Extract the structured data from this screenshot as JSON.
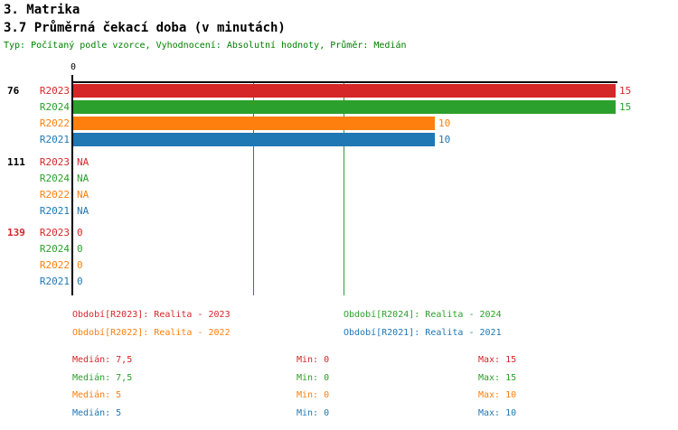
{
  "header": {
    "title": "3. Matrika",
    "subtitle": "3.7 Průměrná čekací doba (v minutách)",
    "info": "Typ: Počítaný podle vzorce, Vyhodnocení: Absolutní hodnoty, Průměr: Medián",
    "info_color": "#008000"
  },
  "chart_data": {
    "type": "bar",
    "orientation": "horizontal",
    "title": "3.7 Průměrná čekací doba (v minutách)",
    "x_axis": {
      "ticks": [
        {
          "value": 0,
          "label": "0"
        }
      ],
      "range": [
        0,
        15
      ],
      "grid": false
    },
    "series": [
      {
        "name": "R2023",
        "color": "#d62728",
        "legend": "Období[R2023]: Realita - 2023",
        "median": 7.5,
        "min": 0,
        "max": 15,
        "median_label": "Medián: 7,5",
        "min_label": "Min: 0",
        "max_label": "Max: 15"
      },
      {
        "name": "R2024",
        "color": "#2ca02c",
        "legend": "Období[R2024]: Realita - 2024",
        "median": 7.5,
        "min": 0,
        "max": 15,
        "median_label": "Medián: 7,5",
        "min_label": "Min: 0",
        "max_label": "Max: 15"
      },
      {
        "name": "R2022",
        "color": "#ff7f0e",
        "legend": "Období[R2022]: Realita - 2022",
        "median": 5,
        "min": 0,
        "max": 10,
        "median_label": "Medián: 5",
        "min_label": "Min: 0",
        "max_label": "Max: 10"
      },
      {
        "name": "R2021",
        "color": "#1f77b4",
        "legend": "Období[R2021]: Realita - 2021",
        "median": 5,
        "min": 0,
        "max": 10,
        "median_label": "Medián: 5",
        "min_label": "Min: 0",
        "max_label": "Max: 10"
      }
    ],
    "groups": [
      {
        "label": "76",
        "label_color": "#000000",
        "values": [
          15,
          15,
          10,
          10
        ],
        "display": [
          "15",
          "15",
          "10",
          "10"
        ]
      },
      {
        "label": "111",
        "label_color": "#000000",
        "values": [
          null,
          null,
          null,
          null
        ],
        "display": [
          "NA",
          "NA",
          "NA",
          "NA"
        ]
      },
      {
        "label": "139",
        "label_color": "#d62728",
        "values": [
          0,
          0,
          0,
          0
        ],
        "display": [
          "0",
          "0",
          "0",
          "0"
        ]
      }
    ],
    "median_lines": [
      {
        "value": 5,
        "color": "#1f77b4"
      },
      {
        "value": 7.5,
        "color": "#2ca02c"
      }
    ],
    "legend_position": "bottom"
  }
}
